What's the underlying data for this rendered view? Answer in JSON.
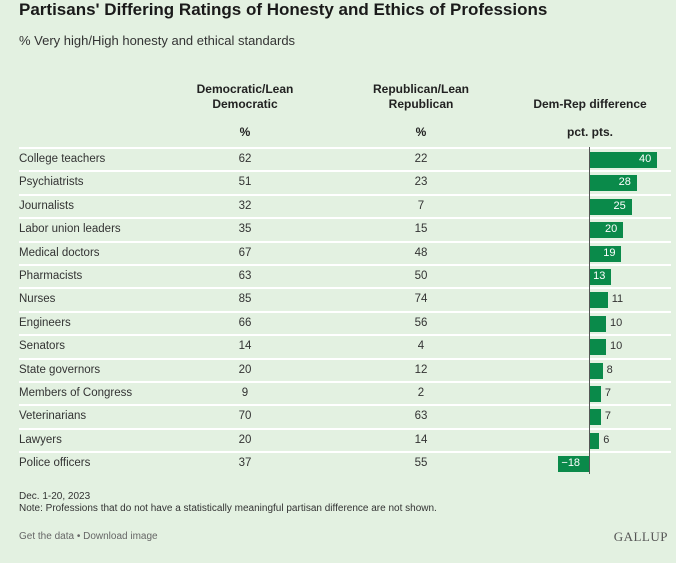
{
  "chart_data": {
    "type": "table",
    "title": "Partisans' Differing Ratings of Honesty and Ethics of Professions",
    "subtitle": "% Very high/High honesty and ethical standards",
    "columns": [
      {
        "header": "Democratic/Lean Democratic",
        "unit": "%"
      },
      {
        "header": "Republican/Lean Republican",
        "unit": "%"
      },
      {
        "header": "Dem-Rep difference",
        "unit": "pct. pts."
      }
    ],
    "rows": [
      {
        "label": "College teachers",
        "dem": 62,
        "rep": 22,
        "diff": 40
      },
      {
        "label": "Psychiatrists",
        "dem": 51,
        "rep": 23,
        "diff": 28
      },
      {
        "label": "Journalists",
        "dem": 32,
        "rep": 7,
        "diff": 25
      },
      {
        "label": "Labor union leaders",
        "dem": 35,
        "rep": 15,
        "diff": 20
      },
      {
        "label": "Medical doctors",
        "dem": 67,
        "rep": 48,
        "diff": 19
      },
      {
        "label": "Pharmacists",
        "dem": 63,
        "rep": 50,
        "diff": 13
      },
      {
        "label": "Nurses",
        "dem": 85,
        "rep": 74,
        "diff": 11
      },
      {
        "label": "Engineers",
        "dem": 66,
        "rep": 56,
        "diff": 10
      },
      {
        "label": "Senators",
        "dem": 14,
        "rep": 4,
        "diff": 10
      },
      {
        "label": "State governors",
        "dem": 20,
        "rep": 12,
        "diff": 8
      },
      {
        "label": "Members of Congress",
        "dem": 9,
        "rep": 2,
        "diff": 7
      },
      {
        "label": "Veterinarians",
        "dem": 70,
        "rep": 63,
        "diff": 7
      },
      {
        "label": "Lawyers",
        "dem": 20,
        "rep": 14,
        "diff": 6
      },
      {
        "label": "Police officers",
        "dem": 37,
        "rep": 55,
        "diff": -18
      }
    ],
    "bar_color": "#0a8a4a"
  },
  "footer": {
    "date": "Dec. 1-20, 2023",
    "note": "Note: Professions that do not have a statistically meaningful partisan difference are not shown.",
    "get_data": "Get the data",
    "separator": " • ",
    "download": "Download image",
    "logo": "GALLUP"
  }
}
